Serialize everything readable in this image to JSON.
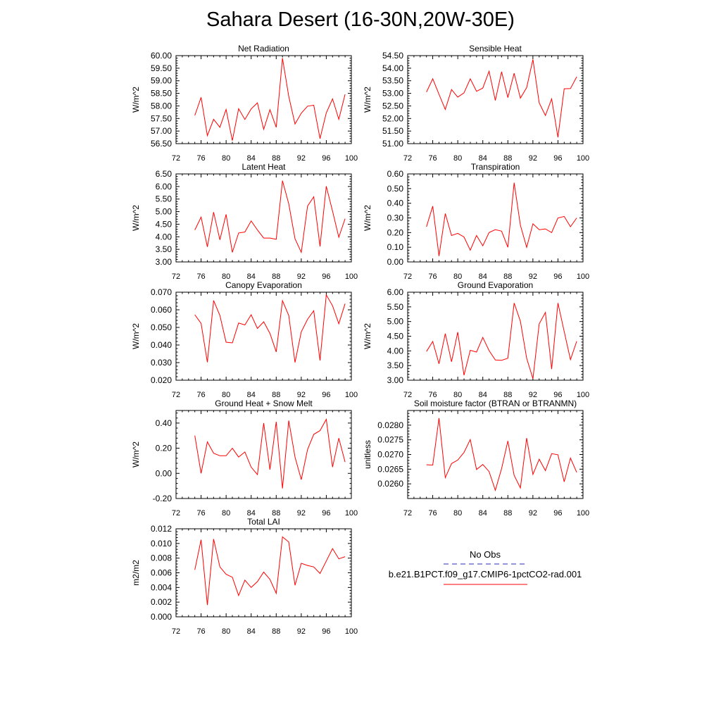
{
  "title": "Sahara Desert (16-30N,20W-30E)",
  "line_color": "#ff0000",
  "obs_color": "#2b2bbf",
  "legend": {
    "obs_label": "No Obs",
    "model_label": "b.e21.B1PCT.f09_g17.CMIP6-1pctCO2-rad.001"
  },
  "chart_data": [
    {
      "type": "line",
      "title": "Net Radiation",
      "ylabel": "W/m^2",
      "xlim": [
        72,
        100
      ],
      "xticks": [
        72,
        76,
        80,
        84,
        88,
        92,
        96,
        100
      ],
      "ylim": [
        56.5,
        60.0
      ],
      "yticks": [
        56.5,
        57.0,
        57.5,
        58.0,
        58.5,
        59.0,
        59.5,
        60.0
      ],
      "ytick_labels": [
        "56.50",
        "57.00",
        "57.50",
        "58.00",
        "58.50",
        "59.00",
        "59.50",
        "60.00"
      ],
      "x": [
        75,
        76,
        77,
        78,
        79,
        80,
        81,
        82,
        83,
        84,
        85,
        86,
        87,
        88,
        89,
        90,
        91,
        92,
        93,
        94,
        95,
        96,
        97,
        98,
        99
      ],
      "series": [
        {
          "values": [
            57.62,
            58.34,
            56.82,
            57.47,
            57.15,
            57.86,
            56.62,
            57.89,
            57.46,
            57.88,
            58.12,
            57.07,
            57.85,
            57.15,
            59.9,
            58.38,
            57.28,
            57.71,
            57.99,
            58.03,
            56.7,
            57.72,
            58.28,
            57.47,
            58.46
          ]
        }
      ]
    },
    {
      "type": "line",
      "title": "Sensible Heat",
      "ylabel": "W/m^2",
      "xlim": [
        72,
        100
      ],
      "xticks": [
        72,
        76,
        80,
        84,
        88,
        92,
        96,
        100
      ],
      "ylim": [
        51.0,
        54.5
      ],
      "yticks": [
        51.0,
        51.5,
        52.0,
        52.5,
        53.0,
        53.5,
        54.0,
        54.5
      ],
      "ytick_labels": [
        "51.00",
        "51.50",
        "52.00",
        "52.50",
        "53.00",
        "53.50",
        "54.00",
        "54.50"
      ],
      "x": [
        75,
        76,
        77,
        78,
        79,
        80,
        81,
        82,
        83,
        84,
        85,
        86,
        87,
        88,
        89,
        90,
        91,
        92,
        93,
        94,
        95,
        96,
        97,
        98,
        99
      ],
      "series": [
        {
          "values": [
            53.05,
            53.58,
            52.96,
            52.36,
            53.15,
            52.85,
            53.02,
            53.58,
            53.08,
            53.21,
            53.88,
            52.72,
            53.86,
            52.83,
            53.8,
            52.81,
            53.23,
            54.35,
            52.62,
            52.12,
            52.78,
            51.25,
            53.18,
            53.19,
            53.66
          ]
        }
      ]
    },
    {
      "type": "line",
      "title": "Latent Heat",
      "ylabel": "W/m^2",
      "xlim": [
        72,
        100
      ],
      "xticks": [
        72,
        76,
        80,
        84,
        88,
        92,
        96,
        100
      ],
      "ylim": [
        3.0,
        6.5
      ],
      "yticks": [
        3.0,
        3.5,
        4.0,
        4.5,
        5.0,
        5.5,
        6.0,
        6.5
      ],
      "ytick_labels": [
        "3.00",
        "3.50",
        "4.00",
        "4.50",
        "5.00",
        "5.50",
        "6.00",
        "6.50"
      ],
      "x": [
        75,
        76,
        77,
        78,
        79,
        80,
        81,
        82,
        83,
        84,
        85,
        86,
        87,
        88,
        89,
        90,
        91,
        92,
        93,
        94,
        95,
        96,
        97,
        98,
        99
      ],
      "series": [
        {
          "values": [
            4.27,
            4.78,
            3.6,
            4.98,
            3.88,
            4.89,
            3.38,
            4.15,
            4.19,
            4.63,
            4.27,
            3.95,
            3.95,
            3.9,
            6.23,
            5.31,
            3.92,
            3.38,
            5.22,
            5.59,
            3.62,
            6.01,
            5.02,
            3.98,
            4.72
          ]
        }
      ]
    },
    {
      "type": "line",
      "title": "Transpiration",
      "ylabel": "W/m^2",
      "xlim": [
        72,
        100
      ],
      "xticks": [
        72,
        76,
        80,
        84,
        88,
        92,
        96,
        100
      ],
      "ylim": [
        0.0,
        0.6
      ],
      "yticks": [
        0.0,
        0.1,
        0.2,
        0.3,
        0.4,
        0.5,
        0.6
      ],
      "ytick_labels": [
        "0.00",
        "0.10",
        "0.20",
        "0.30",
        "0.40",
        "0.50",
        "0.60"
      ],
      "x": [
        75,
        76,
        77,
        78,
        79,
        80,
        81,
        82,
        83,
        84,
        85,
        86,
        87,
        88,
        89,
        90,
        91,
        92,
        93,
        94,
        95,
        96,
        97,
        98,
        99
      ],
      "series": [
        {
          "values": [
            0.24,
            0.38,
            0.04,
            0.33,
            0.18,
            0.195,
            0.17,
            0.08,
            0.18,
            0.11,
            0.2,
            0.22,
            0.21,
            0.1,
            0.54,
            0.25,
            0.1,
            0.26,
            0.22,
            0.225,
            0.2,
            0.3,
            0.31,
            0.24,
            0.3
          ]
        }
      ]
    },
    {
      "type": "line",
      "title": "Canopy Evaporation",
      "ylabel": "W/m^2",
      "xlim": [
        72,
        100
      ],
      "xticks": [
        72,
        76,
        80,
        84,
        88,
        92,
        96,
        100
      ],
      "ylim": [
        0.02,
        0.07
      ],
      "yticks": [
        0.02,
        0.03,
        0.04,
        0.05,
        0.06,
        0.07
      ],
      "ytick_labels": [
        "0.020",
        "0.030",
        "0.040",
        "0.050",
        "0.060",
        "0.070"
      ],
      "x": [
        75,
        76,
        77,
        78,
        79,
        80,
        81,
        82,
        83,
        84,
        85,
        86,
        87,
        88,
        89,
        90,
        91,
        92,
        93,
        94,
        95,
        96,
        97,
        98,
        99
      ],
      "series": [
        {
          "values": [
            0.0572,
            0.0523,
            0.0302,
            0.0653,
            0.0568,
            0.0416,
            0.0412,
            0.0525,
            0.0514,
            0.0572,
            0.0494,
            0.0532,
            0.0466,
            0.0361,
            0.0652,
            0.0568,
            0.0301,
            0.0475,
            0.0546,
            0.0595,
            0.0312,
            0.0685,
            0.0623,
            0.0521,
            0.0635
          ]
        }
      ]
    },
    {
      "type": "line",
      "title": "Ground Evaporation",
      "ylabel": "W/m^2",
      "xlim": [
        72,
        100
      ],
      "xticks": [
        72,
        76,
        80,
        84,
        88,
        92,
        96,
        100
      ],
      "ylim": [
        3.0,
        6.0
      ],
      "yticks": [
        3.0,
        3.5,
        4.0,
        4.5,
        5.0,
        5.5,
        6.0
      ],
      "ytick_labels": [
        "3.00",
        "3.50",
        "4.00",
        "4.50",
        "5.00",
        "5.50",
        "6.00"
      ],
      "x": [
        75,
        76,
        77,
        78,
        79,
        80,
        81,
        82,
        83,
        84,
        85,
        86,
        87,
        88,
        89,
        90,
        91,
        92,
        93,
        94,
        95,
        96,
        97,
        98,
        99
      ],
      "series": [
        {
          "values": [
            3.98,
            4.32,
            3.56,
            4.59,
            3.63,
            4.64,
            3.17,
            4.02,
            3.96,
            4.46,
            4.01,
            3.69,
            3.68,
            3.75,
            5.63,
            5.01,
            3.75,
            3.05,
            4.92,
            5.31,
            3.38,
            5.63,
            4.66,
            3.7,
            4.33
          ]
        }
      ]
    },
    {
      "type": "line",
      "title": "Ground Heat + Snow Melt",
      "ylabel": "W/m^2",
      "xlim": [
        72,
        100
      ],
      "xticks": [
        72,
        76,
        80,
        84,
        88,
        92,
        96,
        100
      ],
      "ylim": [
        -0.2,
        0.5
      ],
      "yticks": [
        -0.2,
        0.0,
        0.2,
        0.4
      ],
      "ytick_labels": [
        "-0.20",
        "0.00",
        "0.20",
        "0.40"
      ],
      "x": [
        75,
        76,
        77,
        78,
        79,
        80,
        81,
        82,
        83,
        84,
        85,
        86,
        87,
        88,
        89,
        90,
        91,
        92,
        93,
        94,
        95,
        96,
        97,
        98,
        99
      ],
      "series": [
        {
          "values": [
            0.3,
            0.0,
            0.25,
            0.16,
            0.14,
            0.14,
            0.2,
            0.13,
            0.17,
            0.05,
            -0.01,
            0.4,
            0.03,
            0.41,
            -0.12,
            0.42,
            0.13,
            -0.05,
            0.19,
            0.31,
            0.34,
            0.43,
            0.05,
            0.28,
            0.09
          ]
        }
      ]
    },
    {
      "type": "line",
      "title": "Soil moisture factor (BTRAN or BTRANMN)",
      "ylabel": "unitless",
      "xlim": [
        72,
        100
      ],
      "xticks": [
        72,
        76,
        80,
        84,
        88,
        92,
        96,
        100
      ],
      "ylim": [
        0.0255,
        0.0285
      ],
      "yticks": [
        0.026,
        0.0265,
        0.027,
        0.0275,
        0.028
      ],
      "ytick_labels": [
        "0.0260",
        "0.0265",
        "0.0270",
        "0.0275",
        "0.0280"
      ],
      "x": [
        75,
        76,
        77,
        78,
        79,
        80,
        81,
        82,
        83,
        84,
        85,
        86,
        87,
        88,
        89,
        90,
        91,
        92,
        93,
        94,
        95,
        96,
        97,
        98,
        99
      ],
      "series": [
        {
          "values": [
            0.02665,
            0.02664,
            0.02824,
            0.02621,
            0.02669,
            0.02681,
            0.02707,
            0.02751,
            0.02649,
            0.02666,
            0.02642,
            0.02578,
            0.02652,
            0.02746,
            0.02629,
            0.02586,
            0.02756,
            0.02632,
            0.02684,
            0.02645,
            0.02703,
            0.02699,
            0.02607,
            0.02688,
            0.02639
          ]
        }
      ]
    },
    {
      "type": "line",
      "title": "Total LAI",
      "ylabel": "m2/m2",
      "xlim": [
        72,
        100
      ],
      "xticks": [
        72,
        76,
        80,
        84,
        88,
        92,
        96,
        100
      ],
      "ylim": [
        0.0,
        0.012
      ],
      "yticks": [
        0.0,
        0.002,
        0.004,
        0.006,
        0.008,
        0.01,
        0.012
      ],
      "ytick_labels": [
        "0.000",
        "0.002",
        "0.004",
        "0.006",
        "0.008",
        "0.010",
        "0.012"
      ],
      "x": [
        75,
        76,
        77,
        78,
        79,
        80,
        81,
        82,
        83,
        84,
        85,
        86,
        87,
        88,
        89,
        90,
        91,
        92,
        93,
        94,
        95,
        96,
        97,
        98,
        99
      ],
      "series": [
        {
          "values": [
            0.0064,
            0.0105,
            0.0016,
            0.0106,
            0.0068,
            0.0058,
            0.0054,
            0.0029,
            0.005,
            0.004,
            0.0048,
            0.0061,
            0.0051,
            0.0032,
            0.0109,
            0.0102,
            0.0043,
            0.0073,
            0.007,
            0.0068,
            0.0059,
            0.0076,
            0.0093,
            0.0079,
            0.0082
          ]
        }
      ]
    }
  ]
}
